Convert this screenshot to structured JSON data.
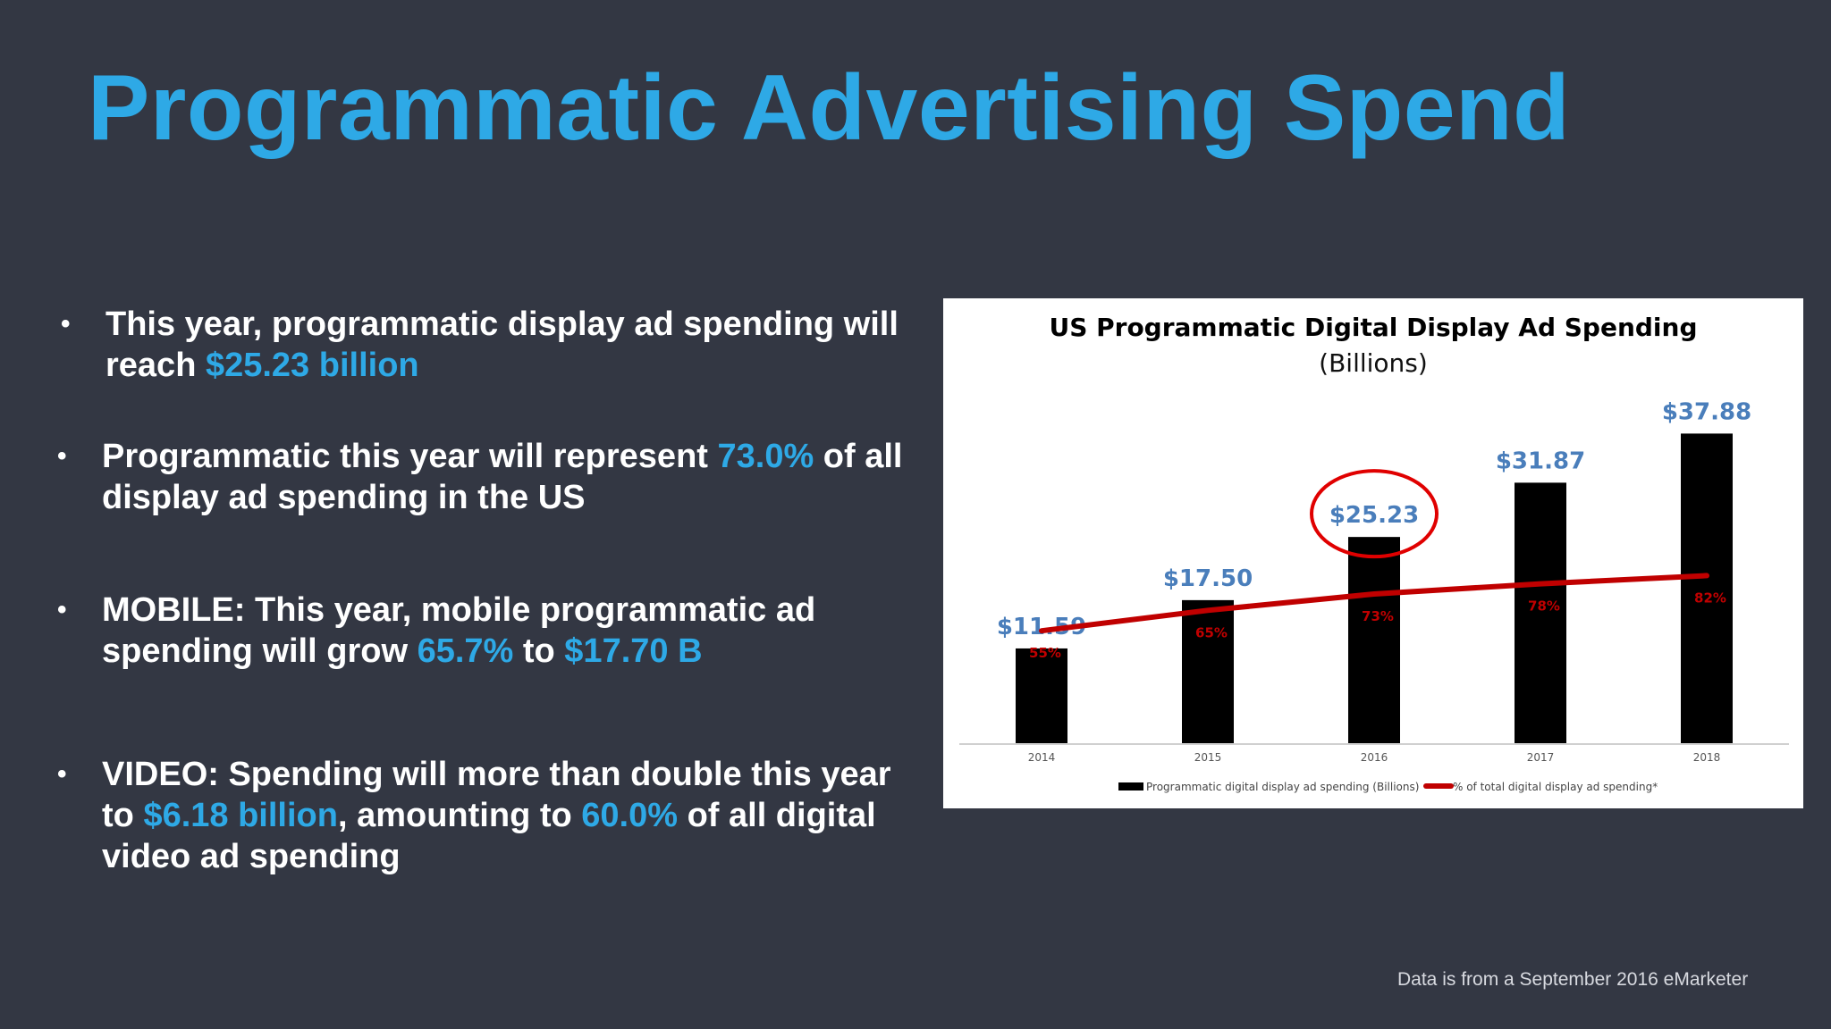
{
  "slide": {
    "title": "Programmatic Advertising Spend",
    "accent_color": "#2EA9E6",
    "background_color": "#333743"
  },
  "bullets": [
    {
      "marker": "•",
      "segments": [
        {
          "text": "This year, programmatic display ad spending will reach ",
          "highlight": false
        },
        {
          "text": "$25.23 billion",
          "highlight": true
        }
      ]
    },
    {
      "marker": "•",
      "segments": [
        {
          "text": "Programmatic this year will represent ",
          "highlight": false
        },
        {
          "text": "73.0%",
          "highlight": true
        },
        {
          "text": " of all display ad spending in the US",
          "highlight": false
        }
      ]
    },
    {
      "marker": "•",
      "segments": [
        {
          "text": "MOBILE: This year, mobile programmatic ad spending will grow ",
          "highlight": false
        },
        {
          "text": "65.7%",
          "highlight": true
        },
        {
          "text": " to ",
          "highlight": false
        },
        {
          "text": "$17.70 B",
          "highlight": true
        }
      ]
    },
    {
      "marker": "•",
      "segments": [
        {
          "text": "VIDEO: Spending will more than double this year to ",
          "highlight": false
        },
        {
          "text": "$6.18 billion",
          "highlight": true
        },
        {
          "text": ", amounting to ",
          "highlight": false
        },
        {
          "text": "60.0%",
          "highlight": true
        },
        {
          "text": " of all digital video ad spending",
          "highlight": false
        }
      ]
    }
  ],
  "footnote": "Data is from a September 2016 eMarketer",
  "chart_data": {
    "type": "bar",
    "title": "US Programmatic Digital Display Ad Spending",
    "subtitle": "(Billions)",
    "categories": [
      "2014",
      "2015",
      "2016",
      "2017",
      "2018"
    ],
    "series": [
      {
        "name": "Programmatic digital display ad spending (Billions)",
        "type": "bar",
        "values": [
          11.59,
          17.5,
          25.23,
          31.87,
          37.88
        ],
        "labels": [
          "$11.59",
          "$17.50",
          "$25.23",
          "$31.87",
          "$37.88"
        ],
        "color": "#000000",
        "label_color": "#4A7EBB"
      },
      {
        "name": "% of total digital display ad spending*",
        "type": "line",
        "values": [
          55,
          65,
          73,
          78,
          82
        ],
        "labels": [
          "55%",
          "65%",
          "73%",
          "78%",
          "82%"
        ],
        "color": "#C00000"
      }
    ],
    "highlight_category": "2016",
    "highlight_color": "#E00000",
    "ylim": [
      0,
      40
    ],
    "ylim_percent": [
      0,
      160
    ],
    "legend_position": "bottom",
    "grid": false
  }
}
